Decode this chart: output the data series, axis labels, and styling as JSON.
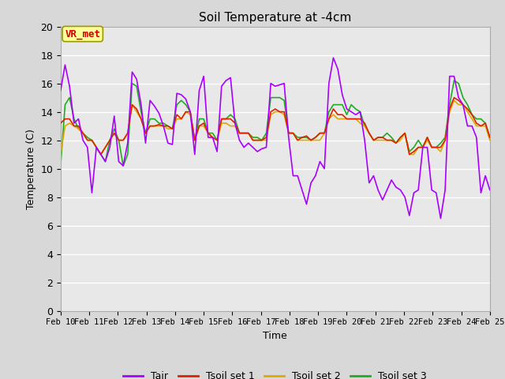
{
  "title": "Soil Temperature at -4cm",
  "xlabel": "Time",
  "ylabel": "Temperature (C)",
  "ylim": [
    0,
    20
  ],
  "fig_bg": "#d8d8d8",
  "plot_bg": "#e8e8e8",
  "annotation_text": "VR_met",
  "annotation_fg": "#cc0000",
  "annotation_bg": "#ffff99",
  "annotation_border": "#999900",
  "x_ticks": [
    "Feb 10",
    "Feb 11",
    "Feb 12",
    "Feb 13",
    "Feb 14",
    "Feb 15",
    "Feb 16",
    "Feb 17",
    "Feb 18",
    "Feb 19",
    "Feb 20",
    "Feb 21",
    "Feb 22",
    "Feb 23",
    "Feb 24",
    "Feb 25"
  ],
  "tair_color": "#aa00ff",
  "tsoil1_color": "#dd2200",
  "tsoil2_color": "#ddaa00",
  "tsoil3_color": "#22aa22",
  "line_width": 1.2,
  "tair": [
    15.5,
    17.3,
    15.8,
    13.2,
    13.5,
    12.0,
    11.5,
    8.3,
    11.5,
    11.0,
    10.5,
    11.5,
    13.7,
    10.5,
    10.2,
    11.8,
    16.8,
    16.3,
    14.5,
    11.8,
    14.8,
    14.4,
    13.9,
    13.0,
    11.8,
    11.7,
    15.3,
    15.2,
    14.9,
    14.0,
    11.0,
    15.5,
    16.5,
    12.2,
    12.2,
    11.2,
    15.8,
    16.2,
    16.4,
    13.2,
    12.0,
    11.5,
    11.8,
    11.5,
    11.2,
    11.4,
    11.5,
    16.0,
    15.8,
    15.9,
    16.0,
    12.2,
    9.5,
    9.5,
    8.5,
    7.5,
    9.0,
    9.5,
    10.5,
    10.0,
    16.0,
    17.8,
    17.0,
    15.2,
    14.2,
    14.0,
    13.8,
    14.0,
    12.0,
    9.0,
    9.5,
    8.5,
    7.8,
    8.5,
    9.2,
    8.7,
    8.5,
    8.0,
    6.7,
    8.3,
    8.5,
    11.5,
    11.5,
    8.5,
    8.3,
    6.5,
    8.5,
    16.5,
    16.5,
    15.0,
    14.5,
    13.0,
    13.0,
    12.2,
    8.3,
    9.5,
    8.5
  ],
  "tsoil1": [
    13.2,
    13.5,
    13.5,
    13.0,
    13.0,
    12.5,
    12.0,
    12.0,
    11.5,
    11.0,
    11.5,
    12.0,
    12.5,
    12.0,
    12.0,
    12.5,
    14.5,
    14.2,
    13.5,
    12.5,
    13.0,
    13.0,
    13.1,
    13.0,
    13.0,
    12.8,
    13.8,
    13.5,
    14.0,
    14.0,
    12.0,
    13.0,
    13.2,
    12.5,
    12.2,
    12.0,
    13.5,
    13.5,
    13.5,
    13.2,
    12.5,
    12.5,
    12.5,
    12.0,
    12.0,
    12.0,
    12.2,
    14.0,
    14.2,
    14.0,
    14.0,
    12.5,
    12.5,
    12.0,
    12.2,
    12.3,
    12.0,
    12.2,
    12.5,
    12.5,
    13.5,
    14.2,
    13.8,
    13.8,
    13.5,
    13.5,
    13.5,
    13.5,
    13.2,
    12.5,
    12.0,
    12.2,
    12.2,
    12.0,
    12.0,
    11.8,
    12.2,
    12.5,
    11.0,
    11.2,
    11.5,
    11.5,
    12.2,
    11.5,
    11.5,
    11.5,
    12.0,
    14.2,
    15.0,
    14.8,
    14.5,
    14.2,
    13.8,
    13.2,
    13.0,
    13.2,
    12.2
  ],
  "tsoil2": [
    11.0,
    13.0,
    13.2,
    13.0,
    12.8,
    12.5,
    12.0,
    12.0,
    11.5,
    11.0,
    11.5,
    12.0,
    12.5,
    12.0,
    12.0,
    12.5,
    14.5,
    14.0,
    13.5,
    12.5,
    13.0,
    13.0,
    13.0,
    13.0,
    12.8,
    12.8,
    13.5,
    13.5,
    14.0,
    13.8,
    12.0,
    13.0,
    13.0,
    12.5,
    12.2,
    12.0,
    13.2,
    13.2,
    13.0,
    13.0,
    12.5,
    12.5,
    12.5,
    12.0,
    12.0,
    12.0,
    12.0,
    13.8,
    14.0,
    14.0,
    13.8,
    12.5,
    12.5,
    12.0,
    12.0,
    12.0,
    12.0,
    12.0,
    12.0,
    12.5,
    13.5,
    13.8,
    13.5,
    13.5,
    13.5,
    13.5,
    13.5,
    13.2,
    13.0,
    12.5,
    12.0,
    12.0,
    12.0,
    12.0,
    12.0,
    11.8,
    12.0,
    12.5,
    11.0,
    11.0,
    11.5,
    11.5,
    12.0,
    11.5,
    11.5,
    11.2,
    12.0,
    14.0,
    14.8,
    14.5,
    14.5,
    14.0,
    13.5,
    13.0,
    13.0,
    13.0,
    12.0
  ],
  "tsoil3": [
    10.2,
    14.5,
    15.0,
    13.5,
    12.8,
    12.5,
    12.2,
    12.0,
    11.5,
    11.0,
    10.5,
    12.0,
    12.8,
    12.0,
    10.2,
    11.0,
    16.0,
    15.8,
    14.0,
    12.5,
    13.5,
    13.5,
    13.2,
    13.2,
    13.0,
    12.8,
    14.5,
    14.8,
    14.5,
    14.0,
    12.0,
    13.5,
    13.5,
    12.5,
    12.5,
    12.0,
    13.5,
    13.5,
    13.8,
    13.5,
    12.5,
    12.5,
    12.5,
    12.2,
    12.2,
    12.0,
    12.5,
    15.0,
    15.0,
    15.0,
    14.8,
    12.5,
    12.5,
    12.2,
    12.2,
    12.2,
    12.0,
    12.2,
    12.5,
    12.5,
    14.0,
    14.5,
    14.5,
    14.5,
    13.8,
    14.5,
    14.2,
    14.0,
    13.0,
    12.5,
    12.0,
    12.2,
    12.2,
    12.5,
    12.2,
    11.8,
    12.2,
    12.5,
    11.2,
    11.5,
    12.0,
    11.5,
    12.2,
    11.5,
    11.5,
    11.8,
    12.2,
    14.5,
    16.2,
    16.0,
    15.0,
    14.5,
    13.8,
    13.5,
    13.5,
    13.2,
    12.2
  ]
}
